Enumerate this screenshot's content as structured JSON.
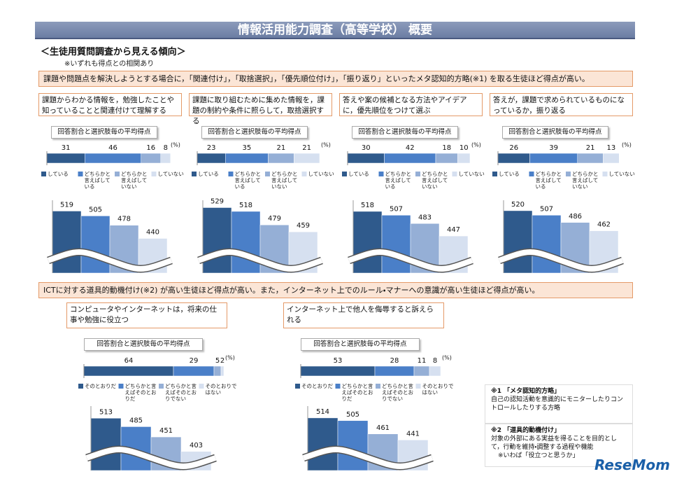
{
  "title": "情報活用能力調査（高等学校） 概要",
  "subtitle": "＜生徒用質問調査から見える傾向＞",
  "note": "※いずれも得点との相関あり",
  "sections": [
    {
      "heading": "課題や問題点を解決しようとする場合に，「関連付け」，「取捨選択」，「優先順位付け」，「振り返り」といったメタ認知的方略(※1) を取る生徒ほど得点が高い。",
      "questions": [
        "課題からわかる情報を，勉強したことや知っていることと関連付けて理解する",
        "課題に取り組むために集めた情報を，課題の制約や条件に照らして，取捨選択する",
        "答えや案の候補となる方法やアイデアに，優先順位をつけて選ぶ",
        "答えが，課題で求められているものになっているか，振り返る"
      ]
    },
    {
      "heading": "ICTに対する道具的動機付け(※2) が高い生徒ほど得点が高い。また，インターネット上でのルール・マナーへの意識が高い生徒ほど得点が高い。",
      "questions": [
        "コンピュータやインターネットは，将来の仕事や勉強に役立つ",
        "インターネット上で他人を侮辱すると訴えられる"
      ]
    }
  ],
  "footnotes": [
    {
      "title": "※1 「メタ認知的方略」",
      "text": "自己の認知活動を意識的にモニターしたりコントロールしたりする方略"
    },
    {
      "title": "※2 「道具的動機付け」",
      "text": "対象の外部にある実益を得ることを目的として，行動を維持・調整する過程や機能",
      "extra": "※いわば「役立つと思うか」"
    }
  ],
  "logo": "ReseMom",
  "chart_data": [
    {
      "type": "stacked_bar",
      "title": "回答割合と選択肢毎の平均得点",
      "unit": "(%)",
      "xlim": [
        0,
        100
      ],
      "series": [
        {
          "name": "している",
          "color": "#2f5a8c",
          "values": [
            31
          ]
        },
        {
          "name": "どちらかと言えばしている",
          "color": "#4a7fc8",
          "values": [
            46
          ]
        },
        {
          "name": "どちらかと言えばしていない",
          "color": "#95afd6",
          "values": [
            16
          ]
        },
        {
          "name": "していない",
          "color": "#d6e0f0",
          "values": [
            8
          ]
        }
      ]
    },
    {
      "type": "bar",
      "values": [
        519,
        505,
        478,
        440
      ],
      "colors": [
        "#2f5a8c",
        "#4a7fc8",
        "#95afd6",
        "#d6e0f0"
      ],
      "ylim": [
        340,
        530
      ]
    },
    {
      "type": "stacked_bar",
      "title": "回答割合と選択肢毎の平均得点",
      "unit": "(%)",
      "xlim": [
        0,
        100
      ],
      "series": [
        {
          "name": "している",
          "color": "#2f5a8c",
          "values": [
            23
          ]
        },
        {
          "name": "どちらかと言えばしている",
          "color": "#4a7fc8",
          "values": [
            35
          ]
        },
        {
          "name": "どちらかと言えばしていない",
          "color": "#95afd6",
          "values": [
            21
          ]
        },
        {
          "name": "していない",
          "color": "#d6e0f0",
          "values": [
            21
          ]
        }
      ]
    },
    {
      "type": "bar",
      "values": [
        529,
        518,
        479,
        459
      ],
      "colors": [
        "#2f5a8c",
        "#4a7fc8",
        "#95afd6",
        "#d6e0f0"
      ],
      "ylim": [
        340,
        530
      ]
    },
    {
      "type": "stacked_bar",
      "title": "回答割合と選択肢毎の平均得点",
      "unit": "(%)",
      "xlim": [
        0,
        100
      ],
      "series": [
        {
          "name": "している",
          "color": "#2f5a8c",
          "values": [
            30
          ]
        },
        {
          "name": "どちらかと言えばしている",
          "color": "#4a7fc8",
          "values": [
            42
          ]
        },
        {
          "name": "どちらかと言えばしていない",
          "color": "#95afd6",
          "values": [
            18
          ]
        },
        {
          "name": "していない",
          "color": "#d6e0f0",
          "values": [
            10
          ]
        }
      ]
    },
    {
      "type": "bar",
      "values": [
        518,
        507,
        483,
        447
      ],
      "colors": [
        "#2f5a8c",
        "#4a7fc8",
        "#95afd6",
        "#d6e0f0"
      ],
      "ylim": [
        340,
        530
      ]
    },
    {
      "type": "stacked_bar",
      "title": "回答割合と選択肢毎の平均得点",
      "unit": "(%)",
      "xlim": [
        0,
        100
      ],
      "series": [
        {
          "name": "している",
          "color": "#2f5a8c",
          "values": [
            26
          ]
        },
        {
          "name": "どちらかと言えばしている",
          "color": "#4a7fc8",
          "values": [
            39
          ]
        },
        {
          "name": "どちらかと言えばしていない",
          "color": "#95afd6",
          "values": [
            21
          ]
        },
        {
          "name": "していない",
          "color": "#d6e0f0",
          "values": [
            13
          ]
        }
      ]
    },
    {
      "type": "bar",
      "values": [
        520,
        507,
        486,
        462
      ],
      "colors": [
        "#2f5a8c",
        "#4a7fc8",
        "#95afd6",
        "#d6e0f0"
      ],
      "ylim": [
        340,
        530
      ]
    },
    {
      "type": "stacked_bar",
      "title": "回答割合と選択肢毎の平均得点",
      "unit": "(%)",
      "xlim": [
        0,
        100
      ],
      "series": [
        {
          "name": "そのとおりだ",
          "color": "#2f5a8c",
          "values": [
            64
          ]
        },
        {
          "name": "どちらかと言えばそのとおりだ",
          "color": "#4a7fc8",
          "values": [
            29
          ]
        },
        {
          "name": "どちらかと言えばそのとおりでない",
          "color": "#95afd6",
          "values": [
            5
          ]
        },
        {
          "name": "そのとおりではない",
          "color": "#d6e0f0",
          "values": [
            2
          ]
        }
      ]
    },
    {
      "type": "bar",
      "values": [
        513,
        485,
        451,
        403
      ],
      "colors": [
        "#2f5a8c",
        "#4a7fc8",
        "#95afd6",
        "#d6e0f0"
      ],
      "ylim": [
        340,
        530
      ]
    },
    {
      "type": "stacked_bar",
      "title": "回答割合と選択肢毎の平均得点",
      "unit": "(%)",
      "xlim": [
        0,
        100
      ],
      "series": [
        {
          "name": "そのとおりだ",
          "color": "#2f5a8c",
          "values": [
            53
          ]
        },
        {
          "name": "どちらかと言えばそのとおりだ",
          "color": "#4a7fc8",
          "values": [
            28
          ]
        },
        {
          "name": "どちらかと言えばそのとおりでない",
          "color": "#95afd6",
          "values": [
            11
          ]
        },
        {
          "name": "そのとおりではない",
          "color": "#d6e0f0",
          "values": [
            8
          ]
        }
      ]
    },
    {
      "type": "bar",
      "values": [
        514,
        505,
        461,
        441
      ],
      "colors": [
        "#2f5a8c",
        "#4a7fc8",
        "#95afd6",
        "#d6e0f0"
      ],
      "ylim": [
        340,
        530
      ]
    }
  ]
}
